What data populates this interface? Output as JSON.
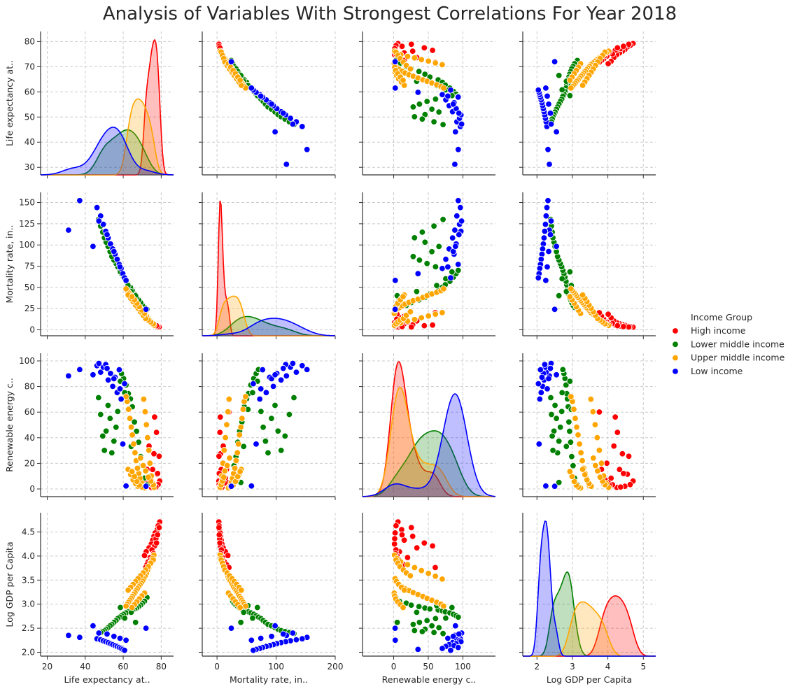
{
  "chart_data": {
    "type": "scatter",
    "title": "Analysis of Variables With Strongest Correlations For Year 2018",
    "variables": [
      "Life expectancy at..",
      "Mortality rate, in..",
      "Renewable energy c..",
      "Log GDP per Capita"
    ],
    "axis_ticks": [
      [
        20,
        40,
        60,
        80
      ],
      [
        0,
        100,
        200
      ],
      [
        0,
        50,
        100
      ],
      [
        2,
        3,
        4,
        5
      ]
    ],
    "y_ticks": [
      [
        30,
        40,
        50,
        60,
        70,
        80
      ],
      [
        0,
        25,
        50,
        75,
        100,
        125,
        150
      ],
      [
        0,
        20,
        40,
        60,
        80,
        100
      ],
      [
        2.0,
        2.5,
        3.0,
        3.5,
        4.0,
        4.5
      ]
    ],
    "x_ranges": [
      [
        16.5,
        86.5
      ],
      [
        -25,
        200
      ],
      [
        -45,
        147
      ],
      [
        1.6,
        5.35
      ]
    ],
    "y_ranges": [
      [
        27,
        84
      ],
      [
        -7,
        162
      ],
      [
        -6,
        106
      ],
      [
        1.92,
        4.9
      ]
    ],
    "diagonal": "kde",
    "grid": true,
    "legend": {
      "title": "Income Group",
      "placement": "right",
      "entries": [
        "High income",
        "Lower middle income",
        "Upper middle income",
        "Low income"
      ]
    },
    "colors": {
      "High income": "#ff0000",
      "Lower middle income": "#008000",
      "Upper middle income": "#ffa500",
      "Low income": "#0000ff"
    },
    "series": [
      {
        "name": "High income",
        "points": [
          [
            79.2,
            3.1,
            6.2,
            4.71
          ],
          [
            78.4,
            3.6,
            3.4,
            4.63
          ],
          [
            77.9,
            4.1,
            11.5,
            4.55
          ],
          [
            76.8,
            5.2,
            2.1,
            4.48
          ],
          [
            76.2,
            6.0,
            27.5,
            4.41
          ],
          [
            75.5,
            7.1,
            15.2,
            4.33
          ],
          [
            74.8,
            8.3,
            1.2,
            4.25
          ],
          [
            73.6,
            10.5,
            33.5,
            4.17
          ],
          [
            72.1,
            14.2,
            8.4,
            4.09
          ],
          [
            71.2,
            18.4,
            4.8,
            4.01
          ],
          [
            78.9,
            3.3,
            25.5,
            4.59
          ],
          [
            77.2,
            4.5,
            1.5,
            4.36
          ],
          [
            76.5,
            5.6,
            56.2,
            4.21
          ],
          [
            75.1,
            7.5,
            3.3,
            4.13
          ],
          [
            74.2,
            9.1,
            20.1,
            3.97
          ],
          [
            73.1,
            12.5,
            4.5,
            3.88
          ],
          [
            78.1,
            3.8,
            12.1,
            4.44
          ],
          [
            77.5,
            4.9,
            44.2,
            4.27
          ],
          [
            76.0,
            6.3,
            2.5,
            4.05
          ],
          [
            74.5,
            8.7,
            7.3,
            3.92
          ],
          [
            72.5,
            16.1,
            15.3,
            3.82
          ],
          [
            71.8,
            20.2,
            60.1,
            3.76
          ]
        ]
      },
      {
        "name": "Lower middle income",
        "points": [
          [
            72.5,
            24.2,
            3.2,
            3.14
          ],
          [
            71.2,
            26.5,
            8.5,
            3.06
          ],
          [
            70.1,
            28.8,
            18.2,
            3.02
          ],
          [
            69.2,
            32.1,
            25.3,
            2.98
          ],
          [
            68.1,
            35.2,
            36.5,
            2.95
          ],
          [
            67.0,
            38.2,
            45.1,
            2.92
          ],
          [
            65.9,
            42.1,
            52.3,
            2.9
          ],
          [
            64.8,
            46.2,
            64.2,
            2.88
          ],
          [
            63.8,
            50.1,
            70.3,
            2.86
          ],
          [
            62.7,
            53.2,
            74.5,
            2.84
          ],
          [
            61.5,
            57.2,
            81.2,
            2.82
          ],
          [
            60.2,
            62.1,
            86.3,
            2.79
          ],
          [
            59.1,
            66.2,
            90.1,
            2.76
          ],
          [
            58.2,
            70.1,
            93.2,
            2.73
          ],
          [
            57.1,
            74.3,
            60.5,
            2.7
          ],
          [
            56.2,
            78.2,
            48.2,
            2.66
          ],
          [
            55.1,
            82.1,
            37.3,
            2.62
          ],
          [
            54.0,
            86.3,
            28.2,
            2.58
          ],
          [
            53.1,
            92.1,
            55.1,
            2.55
          ],
          [
            52.0,
            98.2,
            65.3,
            2.51
          ],
          [
            51.0,
            103.2,
            45.2,
            2.48
          ],
          [
            50.1,
            108.5,
            30.1,
            2.45
          ],
          [
            49.2,
            115.1,
            41.3,
            2.43
          ],
          [
            48.1,
            122.3,
            58.2,
            2.41
          ],
          [
            47.0,
            130.1,
            71.3,
            2.39
          ],
          [
            66.5,
            40.2,
            5.1,
            2.62
          ],
          [
            64.2,
            45.1,
            33.2,
            2.83
          ],
          [
            62.5,
            52.3,
            62.1,
            2.97
          ],
          [
            60.8,
            60.2,
            75.2,
            2.71
          ],
          [
            58.5,
            68.3,
            84.1,
            2.93
          ]
        ]
      },
      {
        "name": "Upper middle income",
        "points": [
          [
            76.2,
            5.2,
            1.2,
            4.02
          ],
          [
            75.5,
            6.5,
            4.5,
            3.95
          ],
          [
            74.8,
            8.1,
            10.2,
            3.88
          ],
          [
            74.1,
            10.2,
            20.1,
            3.82
          ],
          [
            73.5,
            12.1,
            30.2,
            3.76
          ],
          [
            72.8,
            14.2,
            40.1,
            3.7
          ],
          [
            72.2,
            16.3,
            50.2,
            3.64
          ],
          [
            71.5,
            18.5,
            60.3,
            3.58
          ],
          [
            70.8,
            20.3,
            70.1,
            3.52
          ],
          [
            70.2,
            22.4,
            2.3,
            3.48
          ],
          [
            69.5,
            24.5,
            5.4,
            3.44
          ],
          [
            68.8,
            26.2,
            8.3,
            3.4
          ],
          [
            68.2,
            28.1,
            12.1,
            3.36
          ],
          [
            67.5,
            30.2,
            16.2,
            3.32
          ],
          [
            66.8,
            32.3,
            22.1,
            3.28
          ],
          [
            66.2,
            34.5,
            28.3,
            3.24
          ],
          [
            65.5,
            36.2,
            35.1,
            3.2
          ],
          [
            64.8,
            38.1,
            42.2,
            3.16
          ],
          [
            64.2,
            40.2,
            48.3,
            3.12
          ],
          [
            63.5,
            42.3,
            55.1,
            3.08
          ],
          [
            62.8,
            44.2,
            62.2,
            3.04
          ],
          [
            62.1,
            46.1,
            68.3,
            3.0
          ],
          [
            61.5,
            48.3,
            72.1,
            2.96
          ],
          [
            75.8,
            7.1,
            3.3,
            3.92
          ],
          [
            74.5,
            9.2,
            6.1,
            3.85
          ],
          [
            73.2,
            11.3,
            9.2,
            3.78
          ],
          [
            71.8,
            13.2,
            14.1,
            3.71
          ],
          [
            70.5,
            17.1,
            18.3,
            3.65
          ],
          [
            69.1,
            21.2,
            24.1,
            3.59
          ],
          [
            67.8,
            25.3,
            2.1,
            3.53
          ],
          [
            66.5,
            29.2,
            4.2,
            3.47
          ],
          [
            65.2,
            33.3,
            7.1,
            3.41
          ],
          [
            63.9,
            37.2,
            11.2,
            3.35
          ],
          [
            62.6,
            41.1,
            15.3,
            3.29
          ],
          [
            71.2,
            19.3,
            0.8,
            3.23
          ],
          [
            69.8,
            23.1,
            1.5,
            3.17
          ],
          [
            68.5,
            27.2,
            2.9,
            3.11
          ],
          [
            67.2,
            31.3,
            5.8,
            3.05
          ],
          [
            65.9,
            35.2,
            9.7,
            2.99
          ],
          [
            64.6,
            39.1,
            13.6,
            2.93
          ]
        ]
      },
      {
        "name": "Low income",
        "points": [
          [
            31.2,
            117.5,
            88.3,
            2.35
          ],
          [
            37.1,
            152.3,
            93.2,
            2.31
          ],
          [
            46.2,
            144.1,
            96.3,
            2.28
          ],
          [
            48.1,
            134.2,
            91.2,
            2.26
          ],
          [
            49.5,
            124.3,
            95.1,
            2.24
          ],
          [
            50.8,
            116.2,
            97.2,
            2.22
          ],
          [
            52.1,
            108.3,
            85.1,
            2.2
          ],
          [
            53.3,
            101.2,
            90.2,
            2.18
          ],
          [
            54.5,
            95.3,
            80.1,
            2.16
          ],
          [
            55.7,
            89.1,
            87.2,
            2.14
          ],
          [
            56.8,
            83.2,
            75.3,
            2.12
          ],
          [
            57.9,
            77.1,
            93.1,
            2.1
          ],
          [
            58.9,
            72.3,
            70.2,
            2.08
          ],
          [
            59.8,
            66.2,
            35.1,
            2.06
          ],
          [
            60.7,
            61.3,
            82.2,
            2.04
          ],
          [
            47.2,
            128.2,
            98.1,
            2.4
          ],
          [
            51.5,
            112.1,
            94.2,
            2.38
          ],
          [
            55.1,
            92.3,
            86.1,
            2.33
          ],
          [
            58.3,
            74.1,
            78.2,
            2.29
          ],
          [
            61.5,
            58.2,
            2.3,
            2.25
          ],
          [
            72.0,
            24.1,
            2.1,
            2.5
          ],
          [
            44.1,
            98.3,
            89.2,
            2.55
          ]
        ]
      }
    ]
  }
}
